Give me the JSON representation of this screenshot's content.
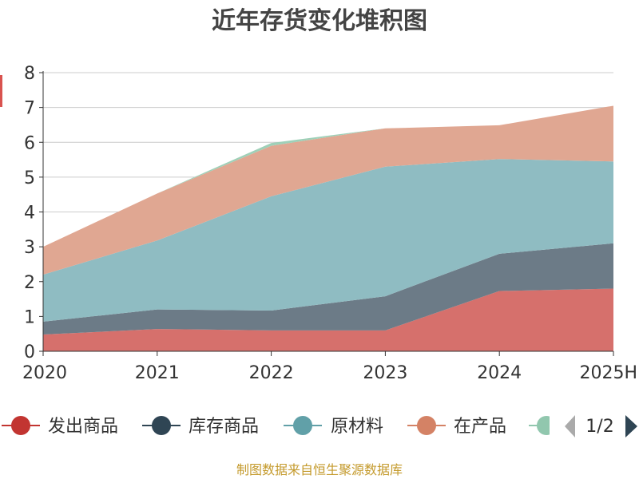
{
  "chart_data": {
    "type": "area",
    "stacked": true,
    "title": "近年存货变化堆积图",
    "xlabel": "",
    "ylabel": "",
    "categories": [
      "2020",
      "2021",
      "2022",
      "2023",
      "2024",
      "2025H"
    ],
    "ylim": [
      0,
      8
    ],
    "yticks": [
      0,
      1,
      2,
      3,
      4,
      5,
      6,
      7,
      8
    ],
    "grid": true,
    "legend_position": "bottom",
    "series": [
      {
        "name": "发出商品",
        "color": "#d6706c",
        "values": [
          0.48,
          0.64,
          0.6,
          0.6,
          1.73,
          1.8
        ]
      },
      {
        "name": "库存商品",
        "color": "#6c7b87",
        "values": [
          0.37,
          0.56,
          0.57,
          0.98,
          1.07,
          1.3
        ]
      },
      {
        "name": "原材料",
        "color": "#8fbcc2",
        "values": [
          1.35,
          1.98,
          3.28,
          3.72,
          2.72,
          2.35
        ]
      },
      {
        "name": "在产品",
        "color": "#e0a792",
        "values": [
          0.8,
          1.35,
          1.45,
          1.1,
          0.97,
          1.6
        ]
      },
      {
        "name": "",
        "color": "#9fd0b8",
        "values": [
          0.0,
          0.0,
          0.08,
          0.0,
          0.0,
          0.0
        ]
      }
    ],
    "legend_markers": [
      "#c23531",
      "#2f4554",
      "#61a0a8",
      "#d48265",
      "#91c7ae"
    ]
  },
  "legend_pager": {
    "text": "1/2"
  },
  "source": "制图数据来自恒生聚源数据库",
  "left_marker_color": "#d9534f"
}
